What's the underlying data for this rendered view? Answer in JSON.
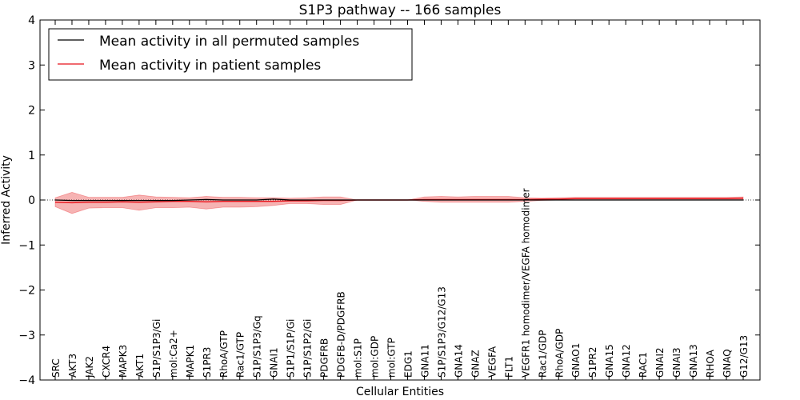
{
  "chart_data": {
    "type": "line",
    "title": "S1P3 pathway -- 166 samples",
    "xlabel": "Cellular Entities",
    "ylabel": "Inferred Activity",
    "ylim": [
      -4,
      4
    ],
    "yticks": [
      4,
      3,
      2,
      1,
      0,
      -1,
      -2,
      -3,
      -4
    ],
    "ytick_labels": [
      "4",
      "3",
      "2",
      "1",
      "0",
      "−1",
      "−2",
      "−3",
      "−4"
    ],
    "grid": false,
    "legend_position": "top-left",
    "categories": [
      "SRC",
      "AKT3",
      "JAK2",
      "CXCR4",
      "MAPK3",
      "AKT1",
      "S1P/S1P3/Gi",
      "mol:Ca2+",
      "MAPK1",
      "S1PR3",
      "RhoA/GTP",
      "Rac1/GTP",
      "S1P/S1P3/Gq",
      "GNAI1",
      "S1P1/S1P/Gi",
      "S1P/S1P2/Gi",
      "PDGFRB",
      "PDGFB-D/PDGFRB",
      "mol:S1P",
      "mol:GDP",
      "mol:GTP",
      "EDG1",
      "GNA11",
      "S1P/S1P3/G12/G13",
      "GNA14",
      "GNAZ",
      "VEGFA",
      "FLT1",
      "VEGFR1 homodimer/VEGFA homodimer",
      "Rac1/GDP",
      "RhoA/GDP",
      "GNAO1",
      "S1PR2",
      "GNA15",
      "GNA12",
      "RAC1",
      "GNAI2",
      "GNAI3",
      "GNA13",
      "RHOA",
      "GNAQ",
      "G12/G13"
    ],
    "series": [
      {
        "name": "Mean activity in all permuted samples",
        "color": "#000000",
        "values": [
          0.0,
          -0.01,
          -0.01,
          -0.01,
          -0.01,
          -0.01,
          -0.01,
          -0.01,
          0.0,
          0.01,
          0.0,
          0.0,
          0.0,
          0.02,
          0.0,
          0.0,
          0.0,
          0.0,
          0.0,
          0.0,
          0.0,
          0.0,
          0.0,
          0.0,
          0.0,
          0.0,
          0.0,
          0.0,
          0.0,
          0.0,
          0.0,
          0.0,
          0.0,
          0.0,
          0.0,
          0.0,
          0.0,
          0.0,
          0.0,
          0.0,
          0.0,
          0.0
        ]
      },
      {
        "name": "Mean activity in patient samples",
        "color": "#e8131a",
        "values": [
          -0.05,
          -0.06,
          -0.05,
          -0.05,
          -0.04,
          -0.05,
          -0.04,
          -0.03,
          -0.03,
          -0.04,
          -0.03,
          -0.03,
          -0.03,
          -0.03,
          -0.02,
          -0.02,
          -0.01,
          -0.01,
          0.0,
          0.0,
          0.0,
          0.0,
          0.01,
          0.01,
          0.01,
          0.01,
          0.01,
          0.01,
          0.01,
          0.02,
          0.02,
          0.03,
          0.03,
          0.03,
          0.03,
          0.03,
          0.03,
          0.03,
          0.03,
          0.03,
          0.03,
          0.04
        ]
      }
    ],
    "band": {
      "upper": [
        0.05,
        0.17,
        0.06,
        0.06,
        0.06,
        0.11,
        0.07,
        0.06,
        0.05,
        0.08,
        0.06,
        0.06,
        0.05,
        0.05,
        0.04,
        0.05,
        0.07,
        0.07,
        0.0,
        0.0,
        0.0,
        0.0,
        0.07,
        0.08,
        0.07,
        0.08,
        0.08,
        0.08,
        0.05,
        0.04,
        0.05,
        0.06,
        0.06,
        0.06,
        0.06,
        0.06,
        0.06,
        0.06,
        0.06,
        0.06,
        0.06,
        0.07
      ],
      "lower": [
        -0.15,
        -0.3,
        -0.18,
        -0.17,
        -0.17,
        -0.23,
        -0.17,
        -0.17,
        -0.16,
        -0.2,
        -0.16,
        -0.16,
        -0.15,
        -0.12,
        -0.08,
        -0.08,
        -0.1,
        -0.1,
        0.0,
        0.0,
        0.0,
        0.0,
        -0.03,
        -0.05,
        -0.05,
        -0.05,
        -0.05,
        -0.05,
        -0.03,
        -0.01,
        0.0,
        0.0,
        0.0,
        0.0,
        0.0,
        0.0,
        0.0,
        0.0,
        0.0,
        0.0,
        0.0,
        0.0
      ],
      "color": "#f08080"
    }
  }
}
